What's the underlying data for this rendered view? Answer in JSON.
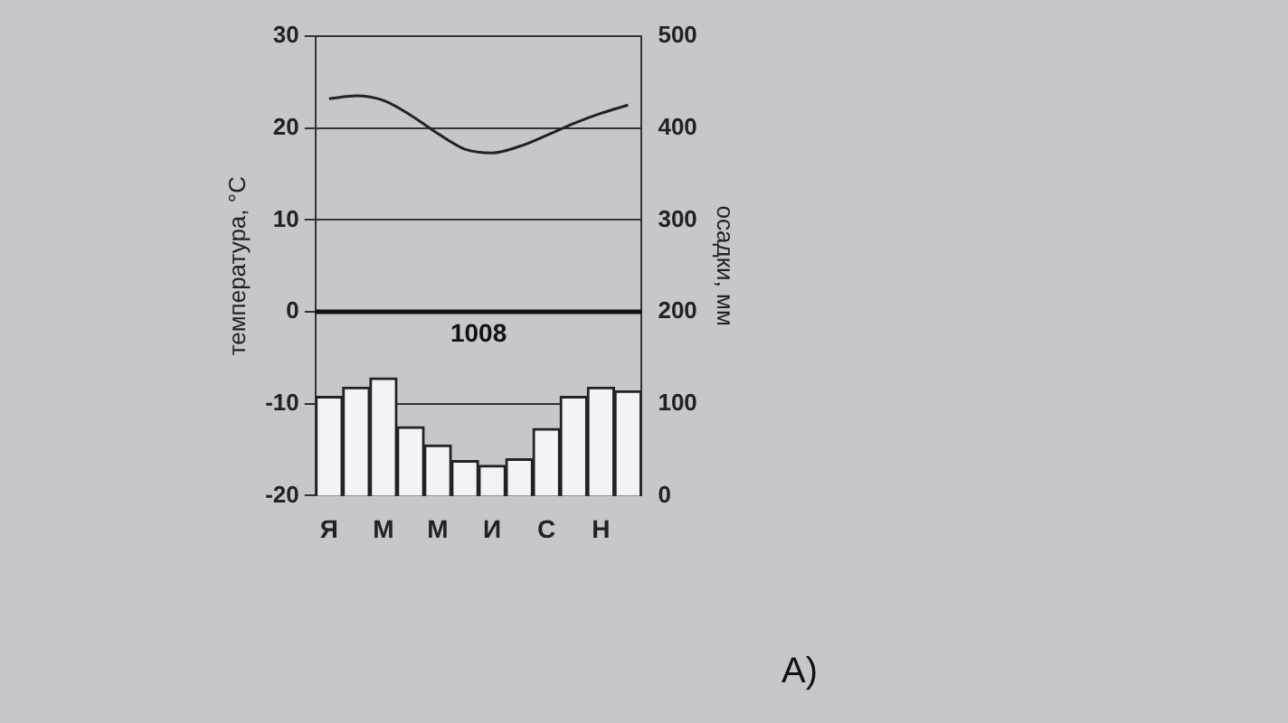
{
  "chart_data": {
    "type": "bar",
    "categories": [
      "Я",
      null,
      "М",
      null,
      "М",
      null,
      "И",
      null,
      "С",
      null,
      "Н",
      null
    ],
    "series": [
      {
        "type": "line",
        "color": "#222222",
        "values": [
          23.2,
          23.5,
          23,
          21.4,
          19.4,
          17.7,
          17.3,
          18,
          19.2,
          20.5,
          21.6,
          22.5
        ]
      },
      {
        "axis": "y2",
        "color": "#f4f2f6",
        "values": [
          108,
          118,
          128,
          75,
          55,
          38,
          33,
          40,
          73,
          108,
          118,
          114
        ]
      }
    ],
    "ylabel": "температура, °С",
    "y2label": "осадки, мм",
    "ylim": [
      -20,
      30
    ],
    "yticks": [
      -20,
      -10,
      0,
      10,
      20,
      30
    ],
    "y2lim": [
      0,
      500
    ],
    "y2ticks": [
      0,
      100,
      200,
      300,
      400,
      500
    ],
    "ref_lines": [
      {
        "axis": "y",
        "value": 0,
        "color": "#111111"
      }
    ],
    "grid": "y",
    "legend": false,
    "marker": "none",
    "line_style": "solid",
    "annotations": [
      "1008",
      "А)"
    ]
  }
}
